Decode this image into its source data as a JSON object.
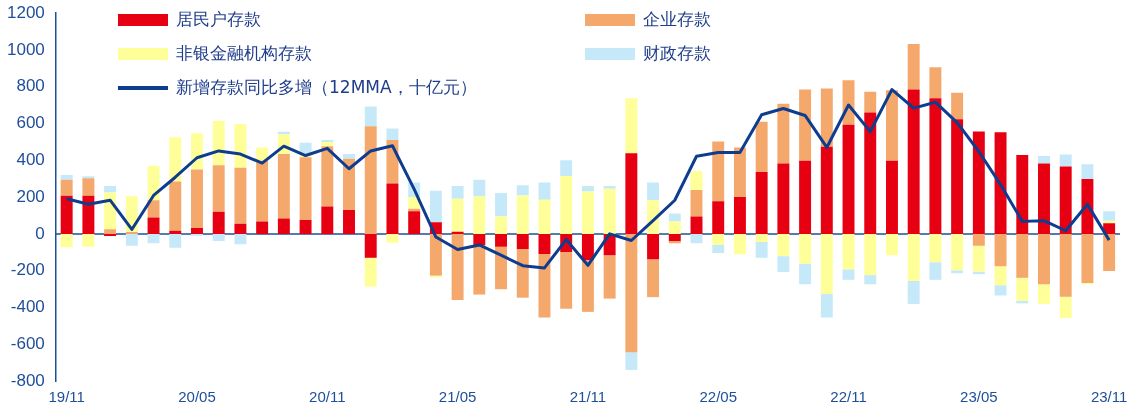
{
  "chart_data": {
    "type": "bar",
    "stacked": true,
    "legend": "top",
    "grid": false,
    "categories": [
      "19/11",
      null,
      null,
      null,
      null,
      null,
      "20/05",
      null,
      null,
      null,
      null,
      null,
      "20/11",
      null,
      null,
      null,
      null,
      null,
      "21/05",
      null,
      null,
      null,
      null,
      null,
      "21/11",
      null,
      null,
      null,
      null,
      null,
      "22/05",
      null,
      null,
      null,
      null,
      null,
      "22/11",
      null,
      null,
      null,
      null,
      null,
      "23/05",
      null,
      null,
      null,
      null,
      null,
      "23/11"
    ],
    "ref_lines": [
      {
        "axis": "y",
        "value": 0,
        "color": "#1f4e9a"
      }
    ],
    "ylim": [
      -800,
      1200
    ],
    "yticks": [
      -800,
      -600,
      -400,
      -200,
      0,
      200,
      400,
      600,
      800,
      1000,
      1200
    ],
    "series": [
      {
        "name": "居民户存款",
        "color": "#e60012",
        "values": [
          208,
          208,
          -12,
          0,
          89,
          17,
          32,
          120,
          55,
          68,
          84,
          75,
          149,
          130,
          -130,
          274,
          123,
          63,
          12,
          -60,
          -70,
          -82,
          -109,
          -99,
          -142,
          -116,
          439,
          -138,
          -39,
          94,
          178,
          200,
          337,
          383,
          397,
          474,
          593,
          660,
          397,
          785,
          738,
          624,
          557,
          552,
          429,
          383,
          366,
          299,
          58
        ]
      },
      {
        "name": "企业存款",
        "color": "#f4a86c",
        "values": [
          86,
          94,
          25,
          10,
          94,
          268,
          318,
          253,
          304,
          329,
          350,
          342,
          328,
          279,
          585,
          237,
          14,
          -227,
          -359,
          -270,
          -231,
          -265,
          -346,
          -308,
          -282,
          -236,
          -643,
          -206,
          -12,
          145,
          325,
          270,
          273,
          325,
          388,
          316,
          243,
          113,
          384,
          247,
          168,
          144,
          -65,
          -176,
          -239,
          -274,
          -342,
          -267,
          -202
        ]
      },
      {
        "name": "非银金融机构存款",
        "color": "#ffff99",
        "values": [
          -73,
          -70,
          200,
          195,
          188,
          240,
          197,
          241,
          239,
          73,
          108,
          10,
          22,
          0,
          -157,
          -48,
          63,
          -10,
          179,
          203,
          94,
          209,
          186,
          315,
          231,
          246,
          299,
          183,
          68,
          103,
          -60,
          -111,
          -44,
          -121,
          -162,
          -326,
          -193,
          -224,
          -116,
          -256,
          -154,
          -198,
          -140,
          -103,
          -125,
          -107,
          -116,
          -6,
          14
        ]
      },
      {
        "name": "财政存款",
        "color": "#c6e9fa",
        "values": [
          26,
          12,
          35,
          -65,
          -51,
          -75,
          -10,
          -39,
          -56,
          0,
          14,
          69,
          12,
          25,
          107,
          62,
          80,
          171,
          69,
          91,
          128,
          56,
          94,
          85,
          29,
          14,
          -97,
          97,
          43,
          -51,
          -44,
          0,
          -86,
          -86,
          -112,
          -129,
          -57,
          -50,
          0,
          -125,
          -96,
          -16,
          -14,
          -56,
          -14,
          41,
          65,
          79,
          51
        ]
      },
      {
        "name": "新增存款同比多增（12MMA，十亿元）",
        "type": "line",
        "marker": "none",
        "color": "#0e3d8f",
        "values": [
          191,
          161,
          183,
          24,
          209,
          308,
          414,
          451,
          434,
          385,
          477,
          426,
          465,
          354,
          451,
          479,
          243,
          -17,
          -85,
          -60,
          -116,
          -173,
          -185,
          -31,
          -171,
          0,
          -36,
          72,
          183,
          422,
          443,
          443,
          648,
          682,
          644,
          470,
          701,
          556,
          785,
          684,
          716,
          605,
          448,
          268,
          68,
          72,
          17,
          161,
          -34
        ]
      }
    ]
  }
}
